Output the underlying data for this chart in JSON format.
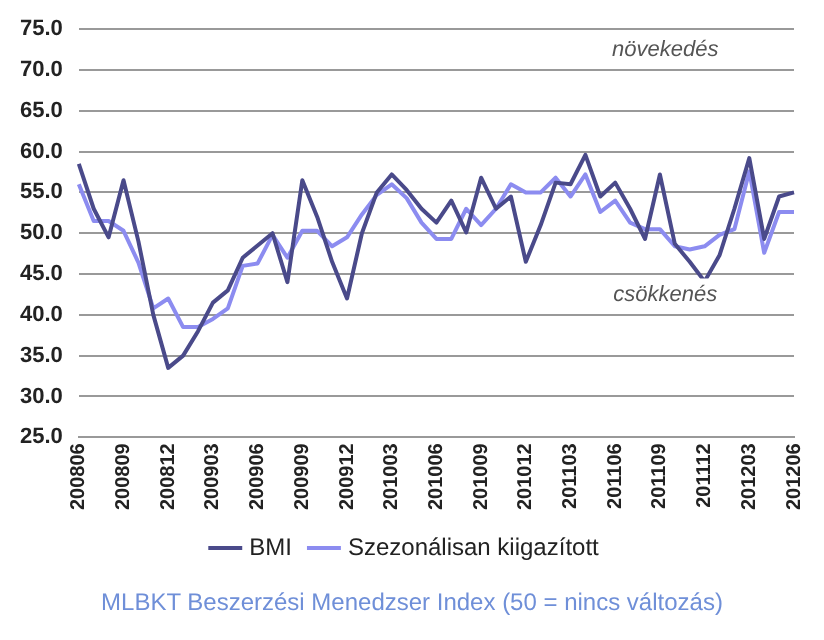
{
  "chart_data": {
    "type": "line",
    "categories": [
      "200806",
      null,
      null,
      "200809",
      null,
      null,
      "200812",
      null,
      null,
      "200903",
      null,
      null,
      "200906",
      null,
      null,
      "200909",
      null,
      null,
      "200912",
      null,
      null,
      "201003",
      null,
      null,
      "201006",
      null,
      null,
      "201009",
      null,
      null,
      "201012",
      null,
      null,
      "201103",
      null,
      null,
      "201106",
      null,
      null,
      "201109",
      null,
      null,
      "201112",
      null,
      null,
      "201203",
      null,
      null,
      "201206"
    ],
    "series": [
      {
        "name": "BMI",
        "color": "#4a4a8a",
        "values": [
          58.5,
          53,
          49.5,
          56.5,
          49,
          40,
          33.5,
          35,
          38,
          41.5,
          43,
          47,
          48.5,
          50,
          44,
          56.5,
          52,
          46.5,
          42,
          50,
          55,
          57.2,
          55.3,
          53,
          51.3,
          54,
          50.1,
          56.8,
          53,
          54.5,
          46.5,
          51,
          56.2,
          56,
          59.6,
          54.5,
          56.2,
          53,
          49.3,
          57.2,
          48.7,
          46.5,
          44.1,
          47.3,
          53,
          59.2,
          49.3,
          54.5,
          55
        ]
      },
      {
        "name": "Szezonálisan kiigazított",
        "color": "#8c8cf0",
        "values": [
          56,
          51.5,
          51.5,
          50.3,
          46.4,
          40.8,
          42,
          38.5,
          38.5,
          39.5,
          40.8,
          46,
          46.3,
          49.8,
          47,
          50.3,
          50.3,
          48.4,
          49.5,
          52.3,
          54.7,
          56,
          54.3,
          51.3,
          49.3,
          49.3,
          53,
          51,
          53,
          56,
          55,
          55,
          56.8,
          54.5,
          57.2,
          52.6,
          54,
          51.3,
          50.5,
          50.5,
          48.4,
          48,
          48.4,
          49.8,
          50.5,
          57.6,
          47.6,
          52.6,
          52.6
        ]
      }
    ],
    "ylim": [
      25,
      75
    ],
    "yticks": [
      {
        "value": 25,
        "label": "25.0"
      },
      {
        "value": 30,
        "label": "30.0"
      },
      {
        "value": 35,
        "label": "35.0"
      },
      {
        "value": 40,
        "label": "40.0"
      },
      {
        "value": 45,
        "label": "45.0"
      },
      {
        "value": 50,
        "label": "50.0"
      },
      {
        "value": 55,
        "label": "55.0"
      },
      {
        "value": 60,
        "label": "60.0"
      },
      {
        "value": 65,
        "label": "65.0"
      },
      {
        "value": 70,
        "label": "70.0"
      },
      {
        "value": 75,
        "label": "75.0"
      }
    ],
    "grid": "y",
    "legend": "bottom",
    "marker": "none",
    "line_style": "solid",
    "annotations": [
      "növekedés",
      "csökkenés",
      "MLBKT Beszerzési Menedzser Index (50 = nincs változás)"
    ]
  }
}
